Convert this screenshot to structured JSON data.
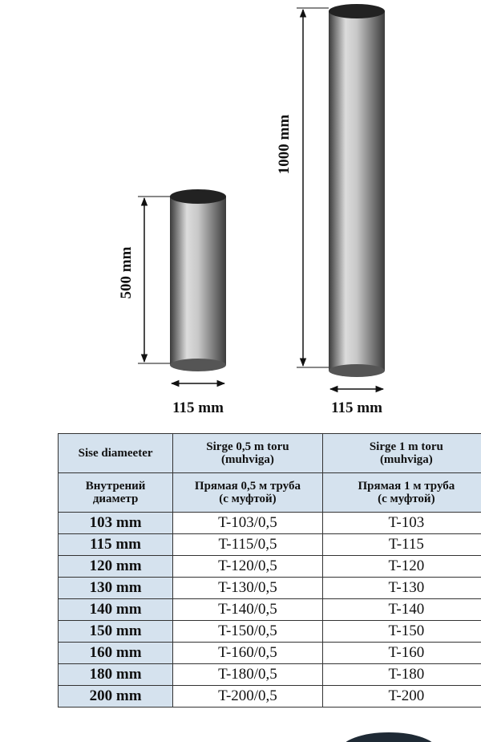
{
  "diagram": {
    "short_pipe": {
      "height_label": "500 mm",
      "width_label": "115 mm"
    },
    "long_pipe": {
      "height_label": "1000 mm",
      "width_label": "115 mm"
    }
  },
  "table": {
    "header": [
      [
        "Sise diameeter",
        "Sirge 0,5 m toru\n(muhviga)",
        "Sirge 1 m toru\n(muhviga)"
      ],
      [
        "Внутрений\nдиаметр",
        "Прямая 0,5 м труба\n(с муфтой)",
        "Прямая 1 м труба\n(с муфтой)"
      ]
    ],
    "rows": [
      [
        "103 mm",
        "T-103/0,5",
        "T-103"
      ],
      [
        "115 mm",
        "T-115/0,5",
        "T-115"
      ],
      [
        "120 mm",
        "T-120/0,5",
        "T-120"
      ],
      [
        "130 mm",
        "T-130/0,5",
        "T-130"
      ],
      [
        "140 mm",
        "T-140/0,5",
        "T-140"
      ],
      [
        "150 mm",
        "T-150/0,5",
        "T-150"
      ],
      [
        "160 mm",
        "T-160/0,5",
        "T-160"
      ],
      [
        "180 mm",
        "T-180/0,5",
        "T-180"
      ],
      [
        "200 mm",
        "T-200/0,5",
        "T-200"
      ]
    ]
  }
}
